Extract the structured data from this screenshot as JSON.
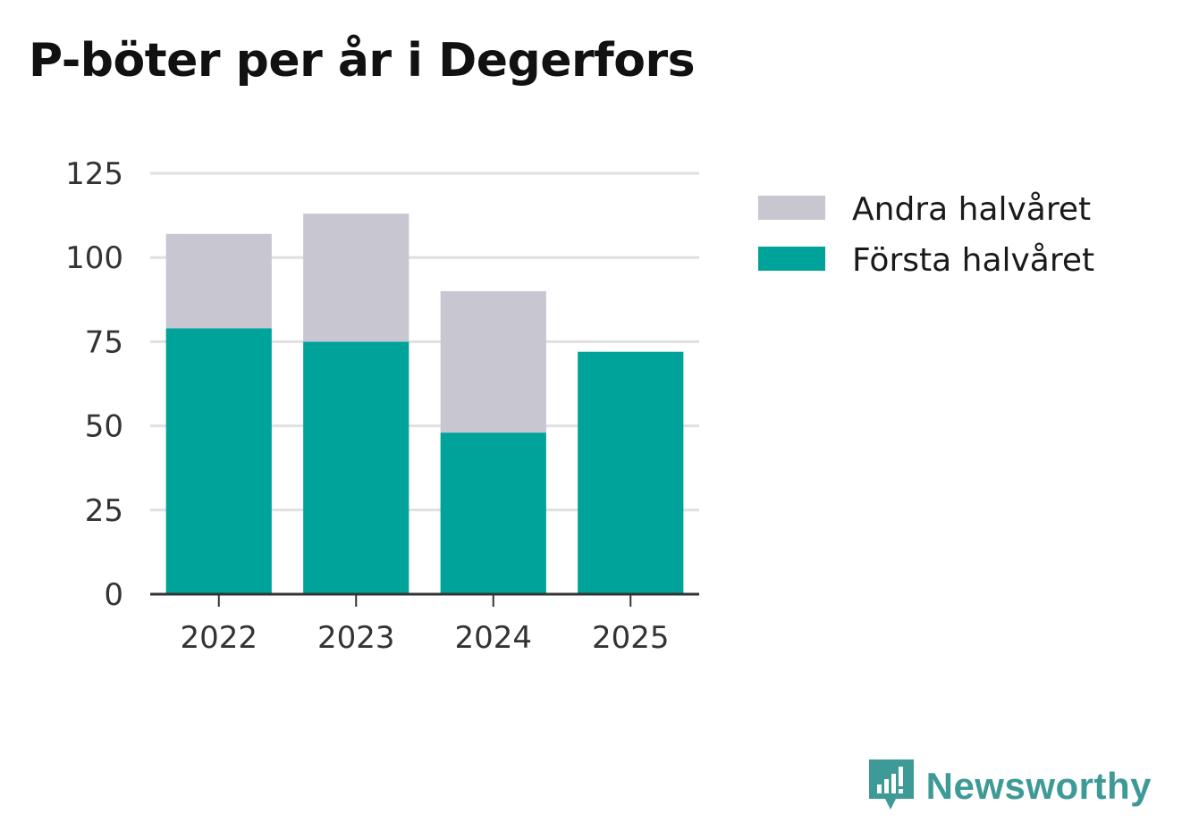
{
  "colors": {
    "first_half": "#00a39a",
    "second_half": "#c7c6d1",
    "grid": "#e0e0e0",
    "axis": "#333333",
    "brand": "#3e9a97"
  },
  "brand": {
    "name": "Newsworthy",
    "icon": "newsworthy-logo-icon"
  },
  "chart_data": {
    "type": "bar",
    "stacked": true,
    "title": "P-böter per år i Degerfors",
    "xlabel": "",
    "ylabel": "",
    "categories": [
      "2022",
      "2023",
      "2024",
      "2025"
    ],
    "series": [
      {
        "name": "Första halvåret",
        "values": [
          79,
          75,
          48,
          72
        ]
      },
      {
        "name": "Andra halvåret",
        "values": [
          28,
          38,
          42,
          0
        ]
      }
    ],
    "ylim": [
      0,
      125
    ],
    "yticks": [
      0,
      25,
      50,
      75,
      100,
      125
    ],
    "grid": true,
    "legend": {
      "position": "right",
      "entries": [
        "Andra halvåret",
        "Första halvåret"
      ]
    }
  }
}
